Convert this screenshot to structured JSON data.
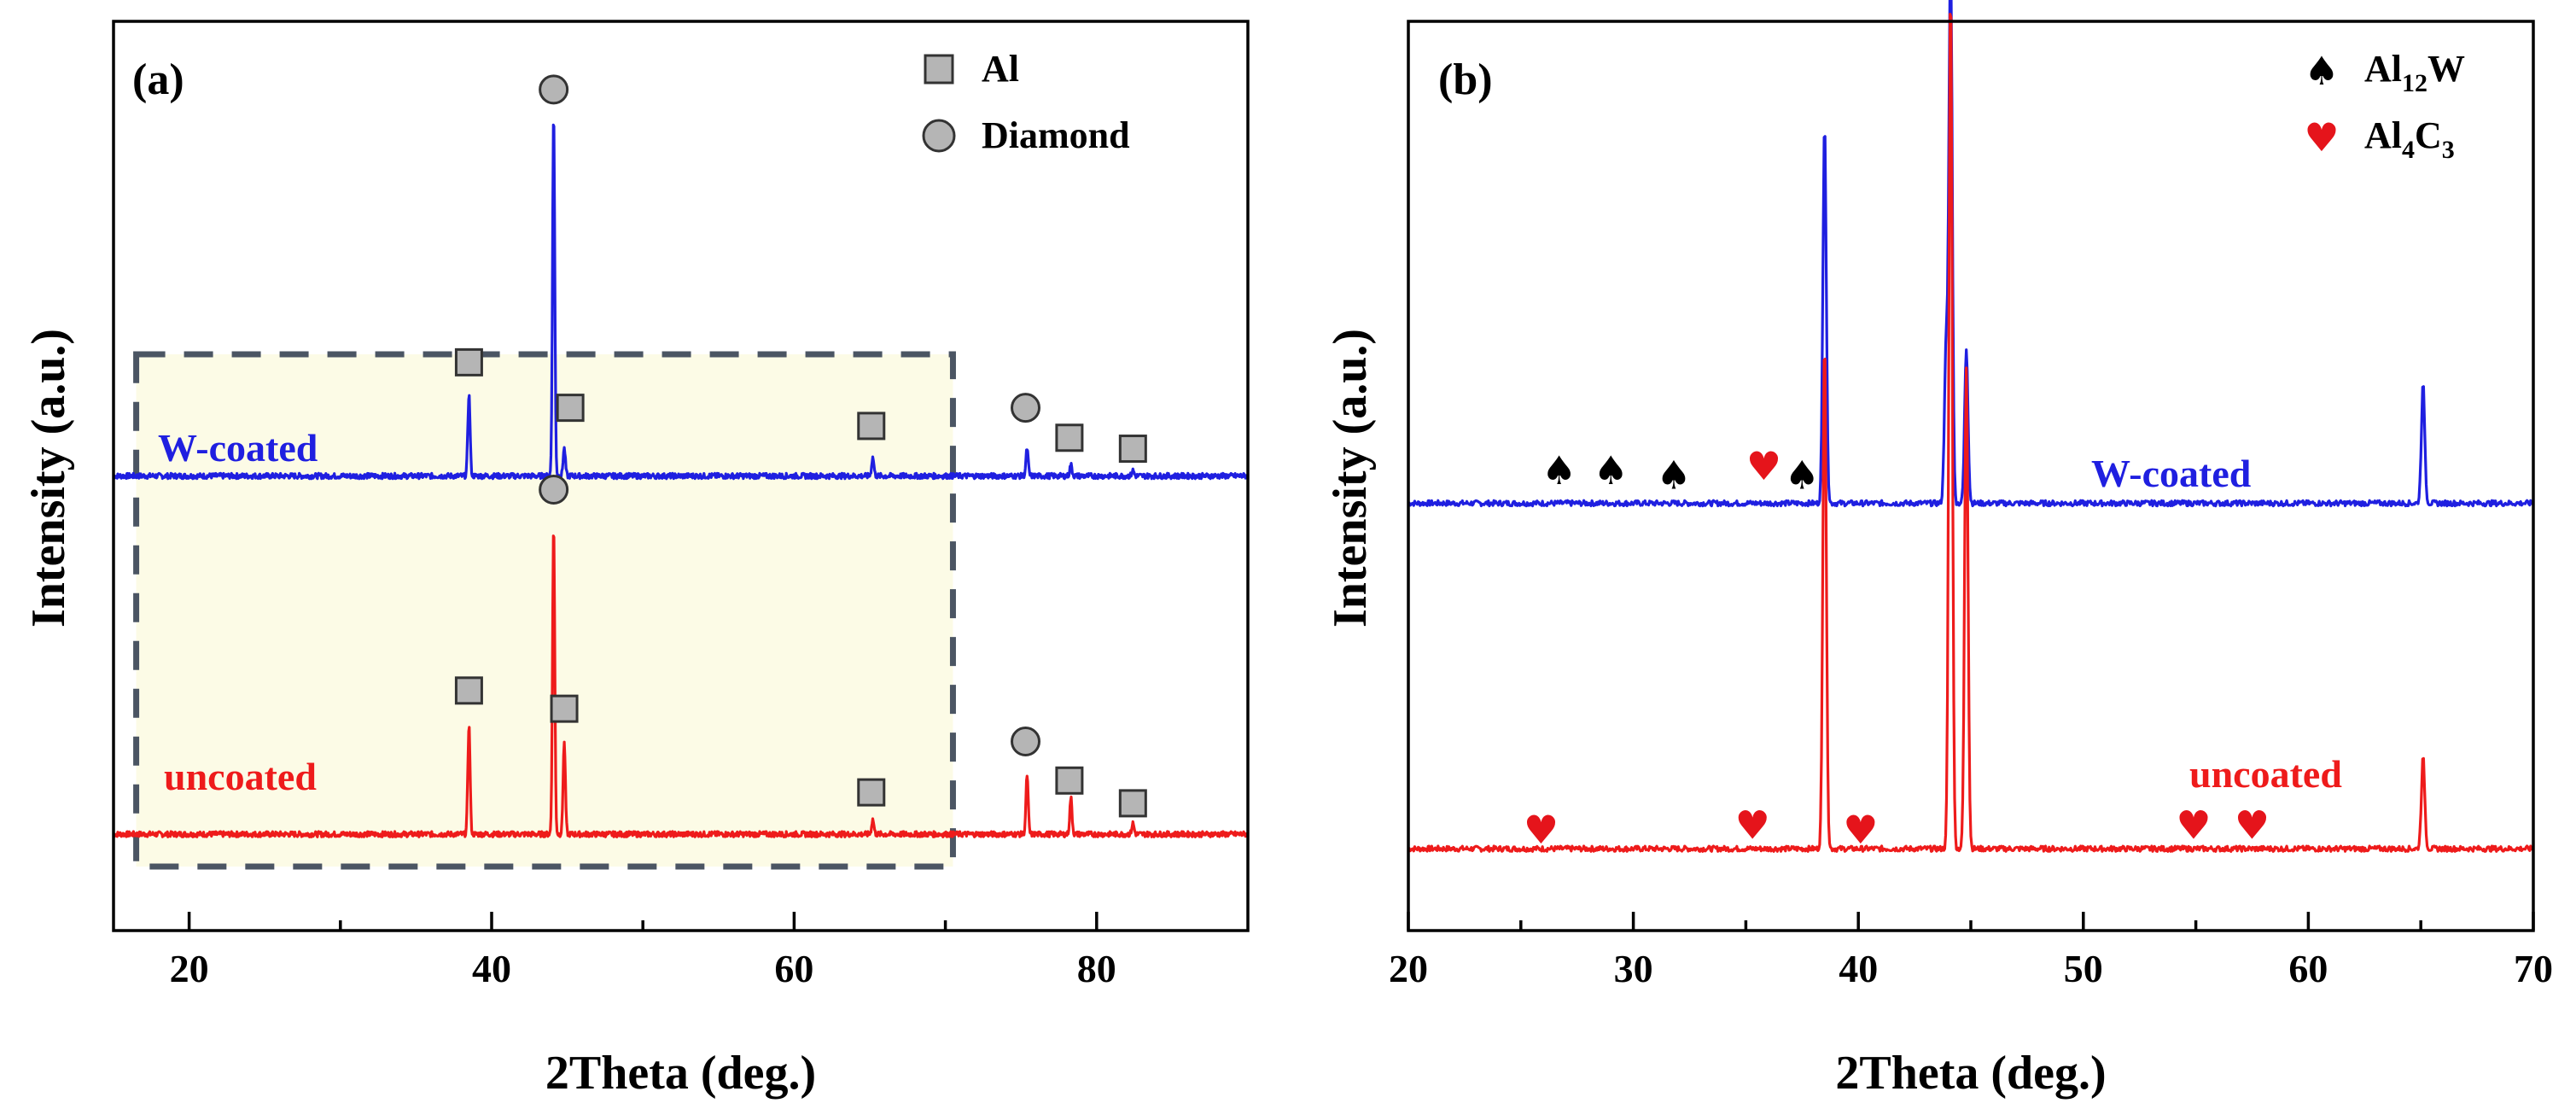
{
  "chart_data": [
    {
      "type": "line",
      "panel_label": "(a)",
      "xlabel": "2Theta (deg.)",
      "ylabel": "Intensity (a.u.)",
      "xlim": [
        15,
        90
      ],
      "ylim": [
        0,
        1
      ],
      "xticks": [
        20,
        40,
        60,
        80
      ],
      "x_minor_ticks": [
        30,
        50,
        70
      ],
      "highlight_box_x": [
        16.5,
        70.5
      ],
      "legend": [
        {
          "marker": "square",
          "label": "Al"
        },
        {
          "marker": "circle",
          "label": "Diamond"
        }
      ],
      "series": [
        {
          "name": "W-coated",
          "color": "#1f1fe0",
          "baseline": 0.5,
          "peaks": [
            {
              "x": 38.5,
              "height": 0.09
            },
            {
              "x": 44.1,
              "height": 0.4
            },
            {
              "x": 44.8,
              "height": 0.03
            },
            {
              "x": 65.2,
              "height": 0.02
            },
            {
              "x": 75.4,
              "height": 0.03
            },
            {
              "x": 78.3,
              "height": 0.012
            },
            {
              "x": 82.4,
              "height": 0.006
            }
          ],
          "markers": [
            {
              "type": "Al",
              "x": 38.5,
              "y": 0.625
            },
            {
              "type": "Diamond",
              "x": 44.1,
              "y": 0.925
            },
            {
              "type": "Al",
              "x": 45.2,
              "y": 0.575
            },
            {
              "type": "Al",
              "x": 65.1,
              "y": 0.555
            },
            {
              "type": "Diamond",
              "x": 75.3,
              "y": 0.575
            },
            {
              "type": "Al",
              "x": 78.2,
              "y": 0.542
            },
            {
              "type": "Al",
              "x": 82.4,
              "y": 0.53
            }
          ]
        },
        {
          "name": "uncoated",
          "color": "#ee1b1b",
          "baseline": 0.106,
          "peaks": [
            {
              "x": 38.5,
              "height": 0.12
            },
            {
              "x": 44.1,
              "height": 0.34
            },
            {
              "x": 44.8,
              "height": 0.1
            },
            {
              "x": 65.2,
              "height": 0.016
            },
            {
              "x": 75.4,
              "height": 0.065
            },
            {
              "x": 78.3,
              "height": 0.04
            },
            {
              "x": 82.4,
              "height": 0.012
            }
          ],
          "markers": [
            {
              "type": "Al",
              "x": 38.5,
              "y": 0.264
            },
            {
              "type": "Diamond",
              "x": 44.1,
              "y": 0.485
            },
            {
              "type": "Al",
              "x": 44.8,
              "y": 0.244
            },
            {
              "type": "Al",
              "x": 65.1,
              "y": 0.152
            },
            {
              "type": "Diamond",
              "x": 75.3,
              "y": 0.208
            },
            {
              "type": "Al",
              "x": 78.2,
              "y": 0.165
            },
            {
              "type": "Al",
              "x": 82.4,
              "y": 0.14
            }
          ]
        }
      ]
    },
    {
      "type": "line",
      "panel_label": "(b)",
      "xlabel": "2Theta (deg.)",
      "ylabel": "Intensity (a.u.)",
      "xlim": [
        20,
        70
      ],
      "ylim": [
        0,
        1
      ],
      "xticks": [
        20,
        30,
        40,
        50,
        60,
        70
      ],
      "x_minor_ticks": [
        25,
        35,
        45,
        55,
        65
      ],
      "legend": [
        {
          "marker": "spade",
          "label": "Al",
          "subscript": "12",
          "suffix": "W"
        },
        {
          "marker": "heart",
          "label": "Al",
          "subscript": "4",
          "suffix": "C",
          "subscript2": "3"
        }
      ],
      "series": [
        {
          "name": "W-coated",
          "color": "#1f1fe0",
          "baseline": 0.47,
          "peaks": [
            {
              "x": 38.5,
              "height": 0.42
            },
            {
              "x": 43.9,
              "height": 0.17
            },
            {
              "x": 44.1,
              "height": 0.6
            },
            {
              "x": 44.8,
              "height": 0.17
            },
            {
              "x": 65.1,
              "height": 0.13
            }
          ],
          "markers": [
            {
              "type": "Al12W",
              "x": 26.7,
              "y": 0.505
            },
            {
              "type": "Al12W",
              "x": 29.0,
              "y": 0.505
            },
            {
              "type": "Al12W",
              "x": 31.8,
              "y": 0.5
            },
            {
              "type": "Al4C3",
              "x": 35.8,
              "y": 0.51
            },
            {
              "type": "Al12W",
              "x": 37.5,
              "y": 0.5
            }
          ]
        },
        {
          "name": "uncoated",
          "color": "#ee1b1b",
          "baseline": 0.09,
          "peaks": [
            {
              "x": 38.5,
              "height": 0.56
            },
            {
              "x": 44.1,
              "height": 0.95
            },
            {
              "x": 44.8,
              "height": 0.53
            },
            {
              "x": 65.1,
              "height": 0.1
            }
          ],
          "markers": [
            {
              "type": "Al4C3",
              "x": 25.9,
              "y": 0.11
            },
            {
              "type": "Al4C3",
              "x": 35.3,
              "y": 0.115
            },
            {
              "type": "Al4C3",
              "x": 40.1,
              "y": 0.11
            },
            {
              "type": "Al4C3",
              "x": 54.9,
              "y": 0.115
            },
            {
              "type": "Al4C3",
              "x": 57.5,
              "y": 0.115
            }
          ]
        }
      ]
    }
  ]
}
